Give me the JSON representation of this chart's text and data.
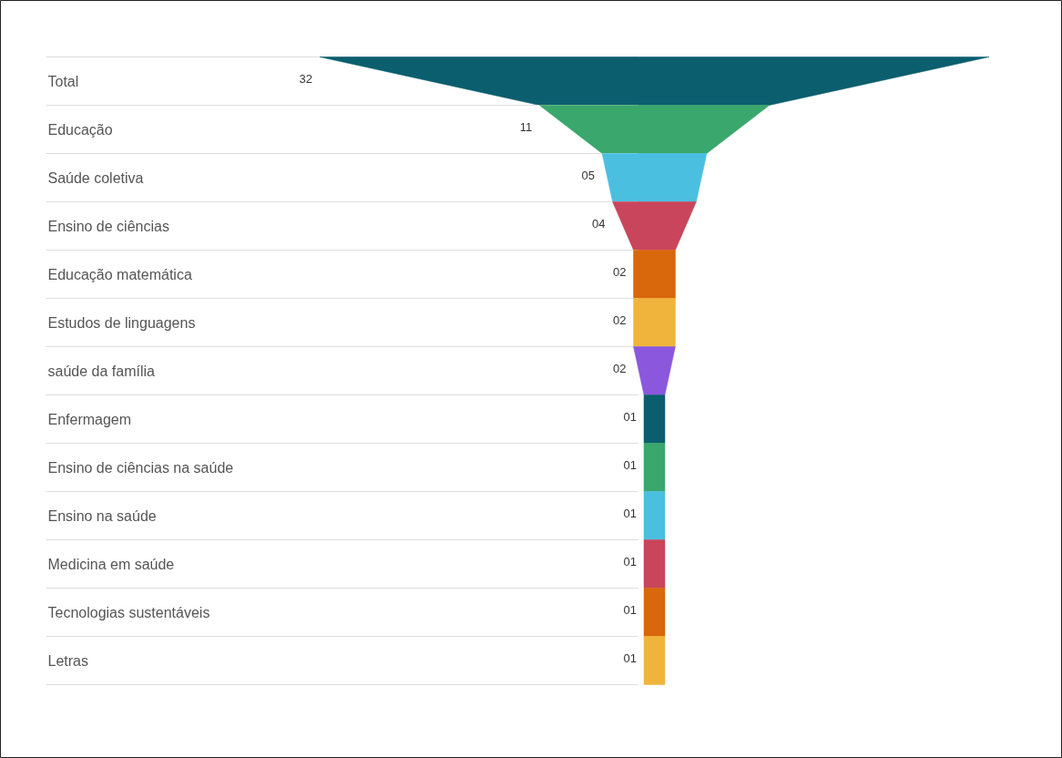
{
  "chart_data": {
    "type": "other",
    "categories": [
      "Total",
      "Educação",
      "Saúde coletiva",
      "Ensino de ciências",
      "Educação matemática",
      "Estudos de linguagens",
      "saúde da família",
      "Enfermagem",
      "Ensino de ciências na saúde",
      "Ensino na saúde",
      "Medicina em saúde",
      "Tecnologias sustentáveis",
      "Letras"
    ],
    "values": [
      32,
      11,
      5,
      4,
      2,
      2,
      2,
      1,
      1,
      1,
      1,
      1,
      1
    ],
    "value_labels": [
      "32",
      "11",
      "05",
      "04",
      "02",
      "02",
      "02",
      "01",
      "01",
      "01",
      "01",
      "01",
      "01"
    ],
    "colors": [
      "#0b5e6e",
      "#3aa76d",
      "#4bbfe0",
      "#c9455b",
      "#d9670b",
      "#f0b43c",
      "#8a57dd",
      "#0b5e6e",
      "#3aa76d",
      "#4bbfe0",
      "#c9455b",
      "#d9670b",
      "#f0b43c"
    ]
  }
}
